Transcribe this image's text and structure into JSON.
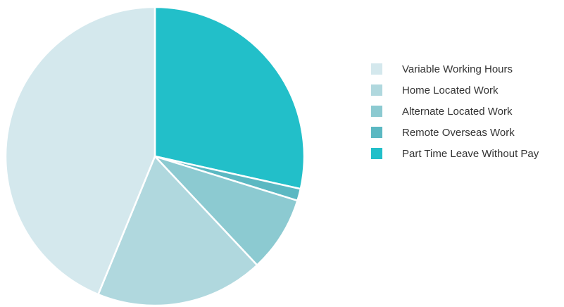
{
  "chart_data": {
    "type": "pie",
    "title": "",
    "start_angle_deg": 0,
    "direction": "clockwise",
    "legend_position": "right",
    "slice_border_color": "#ffffff",
    "categories": [
      "Part Time Leave Without Pay",
      "Remote Overseas Work",
      "Alternate Located Work",
      "Home Located Work",
      "Variable Working Hours"
    ],
    "values": [
      28.5,
      1.3,
      8.2,
      18.2,
      43.8
    ],
    "colors": [
      "#22bfc9",
      "#5bb8c2",
      "#8ccad1",
      "#b0d8de",
      "#d4e8ed"
    ],
    "legend_order": [
      "Variable Working Hours",
      "Home Located Work",
      "Alternate Located Work",
      "Remote Overseas Work",
      "Part Time Leave Without Pay"
    ]
  }
}
